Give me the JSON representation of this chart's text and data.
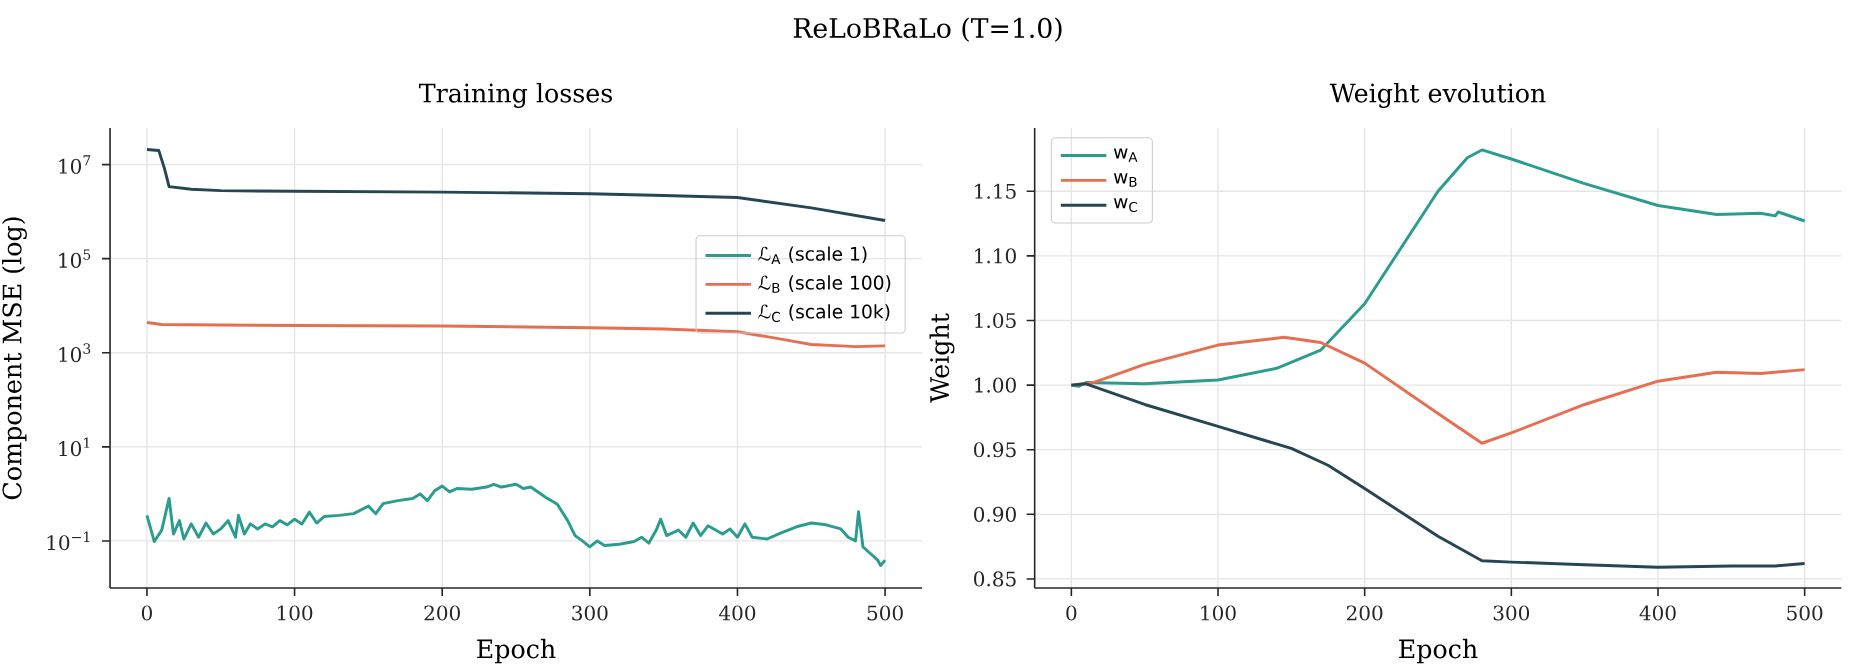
{
  "chart_data": [
    {
      "type": "line",
      "title": "ReLoBRaLo (T=1.0)",
      "subtitle": "Training losses",
      "xlabel": "Epoch",
      "ylabel": "Component MSE (log)",
      "log": "y",
      "grid": true,
      "legend": "right",
      "xlim": [
        -25,
        525
      ],
      "ylim": [
        0.01,
        60000000.0
      ],
      "xticks": [
        0,
        100,
        200,
        300,
        400,
        500
      ],
      "yticks": [
        {
          "value": 0.1,
          "label": "10$^{−1}$"
        },
        {
          "value": 10,
          "label": "10$^{1}$"
        },
        {
          "value": 1000,
          "label": "10$^{3}$"
        },
        {
          "value": 100000,
          "label": "10$^{5}$"
        },
        {
          "value": 10000000,
          "label": "10$^{7}$"
        }
      ],
      "series": [
        {
          "name": "ℒ$_{A}$ (scale 1)",
          "color": "#2a9d8f",
          "x": [
            0,
            5,
            10,
            15,
            18,
            22,
            25,
            30,
            35,
            40,
            45,
            50,
            55,
            60,
            62,
            66,
            70,
            75,
            80,
            85,
            90,
            95,
            100,
            105,
            110,
            115,
            120,
            130,
            140,
            150,
            155,
            160,
            170,
            180,
            185,
            190,
            195,
            200,
            205,
            210,
            220,
            230,
            235,
            240,
            250,
            255,
            260,
            270,
            278,
            285,
            290,
            295,
            300,
            305,
            310,
            320,
            330,
            335,
            340,
            345,
            348,
            352,
            360,
            365,
            370,
            375,
            380,
            390,
            395,
            400,
            405,
            410,
            420,
            430,
            440,
            450,
            460,
            470,
            475,
            480,
            482,
            485,
            490,
            495,
            497,
            500
          ],
          "values": [
            0.35,
            0.097,
            0.17,
            0.8,
            0.14,
            0.27,
            0.11,
            0.23,
            0.12,
            0.24,
            0.14,
            0.18,
            0.27,
            0.12,
            0.35,
            0.14,
            0.23,
            0.18,
            0.23,
            0.2,
            0.27,
            0.22,
            0.29,
            0.23,
            0.41,
            0.24,
            0.33,
            0.35,
            0.38,
            0.55,
            0.38,
            0.62,
            0.72,
            0.8,
            1.0,
            0.72,
            1.17,
            1.47,
            1.1,
            1.3,
            1.25,
            1.4,
            1.6,
            1.4,
            1.6,
            1.3,
            1.4,
            0.85,
            0.6,
            0.27,
            0.13,
            0.1,
            0.075,
            0.1,
            0.08,
            0.085,
            0.097,
            0.12,
            0.09,
            0.17,
            0.29,
            0.13,
            0.17,
            0.12,
            0.24,
            0.13,
            0.21,
            0.14,
            0.18,
            0.12,
            0.23,
            0.12,
            0.11,
            0.15,
            0.2,
            0.24,
            0.22,
            0.18,
            0.12,
            0.1,
            0.42,
            0.075,
            0.054,
            0.039,
            0.03,
            0.039
          ]
        },
        {
          "name": "ℒ$_{B}$ (scale 100)",
          "color": "#e76f51",
          "x": [
            0,
            10,
            50,
            100,
            200,
            300,
            350,
            400,
            420,
            440,
            450,
            470,
            480,
            500
          ],
          "values": [
            4400,
            4000,
            3900,
            3800,
            3700,
            3400,
            3200,
            2800,
            2200,
            1700,
            1500,
            1400,
            1350,
            1400
          ]
        },
        {
          "name": "ℒ$_{C}$ (scale 10k)",
          "color": "#264653",
          "x": [
            0,
            8,
            12,
            15,
            30,
            50,
            100,
            200,
            300,
            350,
            400,
            450,
            500
          ],
          "values": [
            21000000,
            20000000,
            8000000,
            3400000,
            3000000,
            2800000,
            2700000,
            2600000,
            2400000,
            2200000,
            2000000,
            1200000,
            650000
          ]
        }
      ]
    },
    {
      "type": "line",
      "title": "Weight evolution",
      "xlabel": "Epoch",
      "ylabel": "Weight",
      "grid": true,
      "legend": "top left",
      "xlim": [
        -25,
        525
      ],
      "ylim": [
        0.843,
        1.199
      ],
      "xticks": [
        0,
        100,
        200,
        300,
        400,
        500
      ],
      "yticks": [
        0.85,
        {
          "value": 0.9,
          "label": "0.90"
        },
        0.95,
        {
          "value": 1.0,
          "label": "1.00"
        },
        1.05,
        {
          "value": 1.1,
          "label": "1.10"
        },
        1.15
      ],
      "series": [
        {
          "name": "w$_{A}$",
          "color": "#2a9d8f",
          "x": [
            0,
            5,
            10,
            50,
            100,
            140,
            170,
            200,
            250,
            270,
            280,
            300,
            350,
            400,
            440,
            470,
            480,
            482,
            500
          ],
          "values": [
            1.0,
            0.999,
            1.002,
            1.001,
            1.004,
            1.013,
            1.027,
            1.063,
            1.15,
            1.176,
            1.182,
            1.175,
            1.156,
            1.139,
            1.132,
            1.133,
            1.131,
            1.134,
            1.127
          ]
        },
        {
          "name": "w$_{B}$",
          "color": "#e76f51",
          "x": [
            0,
            15,
            50,
            100,
            145,
            170,
            200,
            250,
            280,
            300,
            350,
            400,
            440,
            470,
            500
          ],
          "values": [
            1.0,
            1.002,
            1.016,
            1.031,
            1.037,
            1.033,
            1.017,
            0.978,
            0.955,
            0.963,
            0.985,
            1.003,
            1.01,
            1.009,
            1.012
          ]
        },
        {
          "name": "w$_{C}$",
          "color": "#264653",
          "x": [
            0,
            10,
            50,
            100,
            150,
            175,
            200,
            250,
            280,
            300,
            350,
            400,
            450,
            480,
            500
          ],
          "values": [
            1.0,
            1.001,
            0.985,
            0.968,
            0.951,
            0.938,
            0.92,
            0.883,
            0.864,
            0.863,
            0.861,
            0.859,
            0.86,
            0.86,
            0.862
          ]
        }
      ]
    }
  ]
}
